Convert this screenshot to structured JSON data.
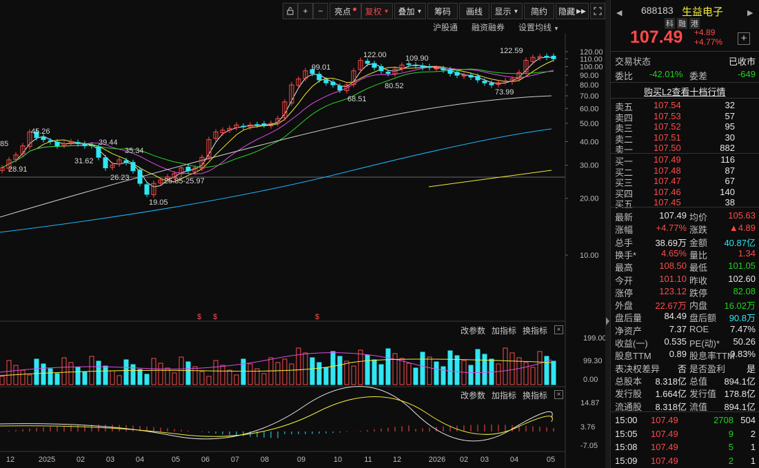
{
  "toolbar": {
    "buttons": [
      "亮点",
      "复权",
      "叠加",
      "筹码",
      "画线",
      "显示",
      "简约",
      "隐藏"
    ],
    "sub": [
      "沪股通",
      "融资融券",
      "设置均线"
    ]
  },
  "colors": {
    "up": "#ff4a4a",
    "down": "#2fe6f2",
    "ma5": "#e8e8e8",
    "ma10": "#f2ee3a",
    "ma20": "#e24ce8",
    "ma30": "#2bd62b",
    "ma60": "#cfcfcf",
    "ma120": "#1fb7ff",
    "ma250": "#f2ee3a"
  },
  "chart_data": [
    {
      "type": "candlestick",
      "scale": "log",
      "y_ticks": [
        "120.00",
        "110.00",
        "100.00",
        "90.00",
        "80.00",
        "70.00",
        "60.00",
        "50.00",
        "40.00",
        "30.00",
        "20.00",
        "10.00"
      ],
      "x_labels": [
        "12",
        "2025",
        "02",
        "03",
        "04",
        "05",
        "06",
        "07",
        "08",
        "09",
        "10",
        "11",
        "12",
        "2026",
        "02",
        "03",
        "04",
        "05"
      ],
      "annotations": [
        "122.59",
        "122.00",
        "109.90",
        "99.01",
        "80.52",
        "68.51",
        "73.99",
        "45.26",
        "39.44",
        "35.34",
        "31.62",
        "28.91",
        "26.23",
        "25.85-25.97",
        "19.05",
        "85"
      ]
    },
    {
      "type": "bar",
      "name": "volume",
      "y_ticks": [
        "199.00",
        "99.30",
        "0.00"
      ]
    },
    {
      "type": "bar",
      "name": "macd",
      "y_ticks": [
        "14.87",
        "3.76",
        "-7.05"
      ]
    }
  ],
  "pane_controls": {
    "param": "改参数",
    "add": "加指标",
    "switch": "换指标",
    "close": "×"
  },
  "quote": {
    "code": "688183",
    "name": "生益电子",
    "tags": [
      "科",
      "融",
      "港"
    ],
    "price": "107.49",
    "change": "+4.89",
    "change_pct": "+4.77%",
    "trade_status_label": "交易状态",
    "trade_status": "已收市",
    "weibi_label": "委比",
    "weibi": "-42.01%",
    "weicha_label": "委差",
    "weicha": "-649",
    "l2_link": "购买L2查看十档行情"
  },
  "asks": [
    {
      "label": "卖五",
      "price": "107.54",
      "vol": "32"
    },
    {
      "label": "卖四",
      "price": "107.53",
      "vol": "57"
    },
    {
      "label": "卖三",
      "price": "107.52",
      "vol": "95"
    },
    {
      "label": "卖二",
      "price": "107.51",
      "vol": "30"
    },
    {
      "label": "卖一",
      "price": "107.50",
      "vol": "882"
    }
  ],
  "bids": [
    {
      "label": "买一",
      "price": "107.49",
      "vol": "116"
    },
    {
      "label": "买二",
      "price": "107.48",
      "vol": "87"
    },
    {
      "label": "买三",
      "price": "107.47",
      "vol": "67"
    },
    {
      "label": "买四",
      "price": "107.46",
      "vol": "140"
    },
    {
      "label": "买五",
      "price": "107.45",
      "vol": "38"
    }
  ],
  "stats": [
    [
      "最新",
      "107.49",
      "均价",
      "105.63"
    ],
    [
      "涨幅",
      "+4.77%",
      "涨跌",
      "▲4.89"
    ],
    [
      "总手",
      "38.69万",
      "金额",
      "40.87亿"
    ],
    [
      "换手*",
      "4.65%",
      "量比",
      "1.34"
    ],
    [
      "最高",
      "108.50",
      "最低",
      "101.05"
    ],
    [
      "今开",
      "101.10",
      "昨收",
      "102.60"
    ],
    [
      "涨停",
      "123.12",
      "跌停",
      "82.08"
    ],
    [
      "外盘",
      "22.67万",
      "内盘",
      "16.02万"
    ],
    [
      "盘后量",
      "84.49",
      "盘后额",
      "90.8万"
    ],
    [
      "净资产",
      "7.37",
      "ROE",
      "7.47%"
    ],
    [
      "收益(一)",
      "0.535",
      "PE(动)*",
      "50.26"
    ],
    [
      "股息TTM",
      "0.89",
      "股息率TTM",
      "0.83%"
    ],
    [
      "表决权差异",
      "否",
      "是否盈利",
      "是"
    ],
    [
      "总股本",
      "8.318亿",
      "总值",
      "894.1亿"
    ],
    [
      "发行股",
      "1.664亿",
      "发行值",
      "178.8亿"
    ],
    [
      "流通股",
      "8.318亿",
      "流值",
      "894.1亿"
    ]
  ],
  "ticks": [
    {
      "time": "15:00",
      "price": "107.49",
      "vol": "2708",
      "num": "504"
    },
    {
      "time": "15:05",
      "price": "107.49",
      "vol": "9",
      "num": "2"
    },
    {
      "time": "15:08",
      "price": "107.49",
      "vol": "5",
      "num": "1"
    },
    {
      "time": "15:09",
      "price": "107.49",
      "vol": "2",
      "num": "1"
    }
  ]
}
